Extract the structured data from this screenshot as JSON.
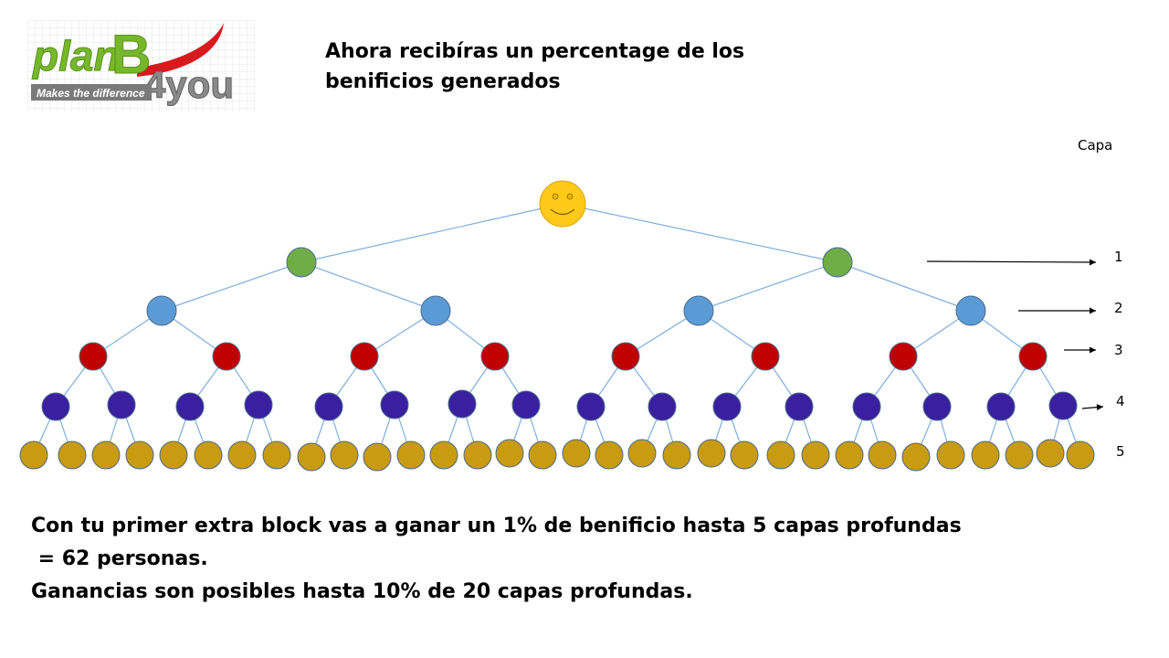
{
  "logo": {
    "brand_part1": "plan",
    "brand_part2": "B",
    "brand_part3": "4you",
    "tagline": "Makes the difference"
  },
  "title": {
    "line1": "Ahora recibíras un percentage de los",
    "line2": "benificios generados"
  },
  "layers": {
    "header": "Capa",
    "labels": [
      "1",
      "2",
      "3",
      "4",
      "5"
    ]
  },
  "footer": {
    "line1": "Con tu primer extra block vas a ganar un 1% de benificio hasta 5 capas profundas",
    "line2": " = 62 personas.",
    "line3": "Ganancias son posibles hasta 10% de 20 capas profundas."
  },
  "colors": {
    "root": "#FFC91A",
    "level1": "#70AD47",
    "level2": "#5B9BD5",
    "level3": "#C00000",
    "level4": "#3A1FA0",
    "level5": "#C89B10",
    "edge": "#7EB0DC",
    "logo_green": "#76B82A",
    "logo_grey": "#6E6E6E",
    "logo_red": "#D8191E"
  },
  "tree": {
    "root_icon": "smiley-face-icon",
    "levels": 6
  }
}
